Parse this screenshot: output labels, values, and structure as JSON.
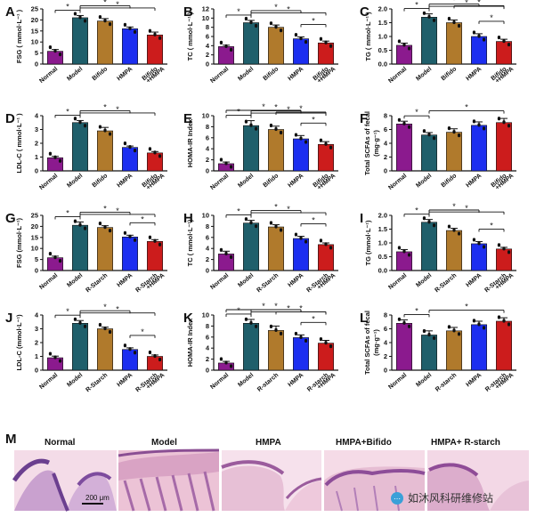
{
  "colors": {
    "Normal": "#8b1a8e",
    "Model": "#1f5f6b",
    "Bifido": "#b07a2c",
    "R-Starch": "#b07a2c",
    "HMPA": "#1c2ef0",
    "Combo": "#cc1c1c"
  },
  "chart_data": [
    {
      "panel": "A",
      "type": "bar",
      "ylabel": "FSG ( mmol·L⁻¹ )",
      "ylim": [
        0,
        25
      ],
      "yticks": [
        0,
        5,
        10,
        15,
        20,
        25
      ],
      "categories": [
        "Normal",
        "Model",
        "Bifido",
        "HMPA",
        "Bifido\n+HMPA"
      ],
      "values": [
        5.8,
        21,
        19.5,
        16,
        13.2
      ],
      "errors": [
        0.8,
        1.0,
        1.1,
        0.8,
        1.3
      ],
      "sig_marks": [
        "*",
        "*",
        "*"
      ]
    },
    {
      "panel": "B",
      "type": "bar",
      "ylabel": "TC ( mmol·L⁻¹ )",
      "ylim": [
        0,
        12
      ],
      "yticks": [
        0,
        2,
        4,
        6,
        8,
        10,
        12
      ],
      "categories": [
        "Normal",
        "Model",
        "Bifido",
        "HMPA",
        "Bifido\n+HMPA"
      ],
      "values": [
        3.8,
        9,
        8,
        5.5,
        4.6
      ],
      "errors": [
        0.3,
        0.5,
        0.5,
        0.4,
        0.4
      ],
      "sig_marks": [
        "*",
        "*",
        "*",
        "*"
      ]
    },
    {
      "panel": "C",
      "type": "bar",
      "ylabel": "TG ( mmol·L⁻¹ )",
      "ylim": [
        0,
        2.0
      ],
      "yticks": [
        0.0,
        0.5,
        1.0,
        1.5,
        2.0
      ],
      "categories": [
        "Normal",
        "Model",
        "Bifido",
        "HMPA",
        "Bifido\n+HMPA"
      ],
      "values": [
        0.68,
        1.7,
        1.5,
        1.0,
        0.82
      ],
      "errors": [
        0.08,
        0.12,
        0.1,
        0.1,
        0.08
      ],
      "sig_marks": [
        "*",
        "*",
        "*",
        "*",
        "*"
      ]
    },
    {
      "panel": "D",
      "type": "bar",
      "ylabel": "LDL-C ( mmol·L⁻¹ )",
      "ylim": [
        0,
        4
      ],
      "yticks": [
        0,
        1,
        2,
        3,
        4
      ],
      "categories": [
        "Normal",
        "Model",
        "Bifido",
        "HMPA",
        "Bifido\n+HMPA"
      ],
      "values": [
        0.95,
        3.5,
        2.9,
        1.7,
        1.3
      ],
      "errors": [
        0.1,
        0.15,
        0.25,
        0.1,
        0.1
      ],
      "sig_marks": [
        "*",
        "*",
        "*"
      ]
    },
    {
      "panel": "E",
      "type": "bar",
      "ylabel": "HOMA-IR Index",
      "ylim": [
        0,
        10
      ],
      "yticks": [
        0,
        2,
        4,
        6,
        8,
        10
      ],
      "categories": [
        "Normal",
        "Model",
        "Bifido",
        "HMPA",
        "Bifido\n+HMPA"
      ],
      "values": [
        1.3,
        8.2,
        7.5,
        5.8,
        4.8
      ],
      "errors": [
        0.3,
        0.9,
        0.6,
        0.6,
        0.5
      ],
      "sig_marks": [
        "*",
        "*",
        "*",
        "*",
        "*",
        "*"
      ]
    },
    {
      "panel": "F",
      "type": "bar",
      "ylabel": "Total SCFAs of fecal",
      "ylabel2": "(mg·g⁻¹)",
      "ylim": [
        0,
        8
      ],
      "yticks": [
        0,
        2,
        4,
        6,
        8
      ],
      "categories": [
        "Normal",
        "Model",
        "Bifido",
        "HMPA",
        "Bifido\n+HMPA"
      ],
      "values": [
        6.8,
        5.2,
        5.6,
        6.6,
        7.0
      ],
      "errors": [
        0.4,
        0.35,
        0.5,
        0.5,
        0.6
      ],
      "sig_marks": [
        "*",
        "*"
      ]
    },
    {
      "panel": "G",
      "type": "bar",
      "ylabel": "FSG (mmol·L⁻¹)",
      "ylim": [
        0,
        25
      ],
      "yticks": [
        0,
        5,
        10,
        15,
        20,
        25
      ],
      "categories": [
        "Normal",
        "Model",
        "R-Starch",
        "HMPA",
        "R-Starch\n+HMPA"
      ],
      "values": [
        5.8,
        20.5,
        19.5,
        15.2,
        13.2
      ],
      "errors": [
        0.7,
        1.5,
        0.8,
        0.8,
        0.8
      ],
      "sig_marks": [
        "*",
        "*",
        "*",
        "*"
      ]
    },
    {
      "panel": "H",
      "type": "bar",
      "ylabel": "TC ( mmol·L⁻¹)",
      "ylim": [
        0,
        10
      ],
      "yticks": [
        0,
        2,
        4,
        6,
        8,
        10
      ],
      "categories": [
        "Normal",
        "Model",
        "R-Starch",
        "HMPA",
        "R-Starch\n+HMPA"
      ],
      "values": [
        3.0,
        8.6,
        7.9,
        5.8,
        4.7
      ],
      "errors": [
        0.5,
        0.5,
        0.4,
        0.4,
        0.3
      ],
      "sig_marks": [
        "*",
        "*",
        "*",
        "*"
      ]
    },
    {
      "panel": "I",
      "type": "bar",
      "ylabel": "TG (mmol·L⁻¹)",
      "ylim": [
        0,
        2.0
      ],
      "yticks": [
        0.0,
        0.5,
        1.0,
        1.5,
        2.0
      ],
      "categories": [
        "Normal",
        "Model",
        "R-Starch",
        "HMPA",
        "R-Starch\n+HMPA"
      ],
      "values": [
        0.68,
        1.75,
        1.45,
        0.97,
        0.78
      ],
      "errors": [
        0.08,
        0.1,
        0.08,
        0.08,
        0.06
      ],
      "sig_marks": [
        "*",
        "*",
        "*",
        "*"
      ]
    },
    {
      "panel": "J",
      "type": "bar",
      "ylabel": "LDL-C (mmol·L⁻¹)",
      "ylim": [
        0,
        4
      ],
      "yticks": [
        0,
        1,
        2,
        3,
        4
      ],
      "categories": [
        "Normal",
        "Model",
        "R-Starch",
        "HMPA",
        "R-Starch\n+HMPA"
      ],
      "values": [
        0.9,
        3.4,
        3.0,
        1.5,
        1.0
      ],
      "errors": [
        0.12,
        0.2,
        0.12,
        0.12,
        0.1
      ],
      "sig_marks": [
        "*",
        "*",
        "*",
        "*"
      ]
    },
    {
      "panel": "K",
      "type": "bar",
      "ylabel": "HOMA-IR Index",
      "ylim": [
        0,
        10
      ],
      "yticks": [
        0,
        2,
        4,
        6,
        8,
        10
      ],
      "categories": [
        "Normal",
        "Model",
        "R-starch",
        "HMPA",
        "R-starch\n+HMPA"
      ],
      "values": [
        1.3,
        8.5,
        7.2,
        5.9,
        4.9
      ],
      "errors": [
        0.3,
        0.7,
        0.8,
        0.5,
        0.5
      ],
      "sig_marks": [
        "*",
        "*",
        "*",
        "*",
        "*",
        "*"
      ]
    },
    {
      "panel": "L",
      "type": "bar",
      "ylabel": "Total SCFAs of fecal",
      "ylabel2": "(mg·g⁻¹)",
      "ylim": [
        0,
        8
      ],
      "yticks": [
        0,
        2,
        4,
        6,
        8
      ],
      "categories": [
        "Normal",
        "Model",
        "R-starch",
        "HMPA",
        "R-starch\n+HMPA"
      ],
      "values": [
        6.8,
        5.1,
        5.7,
        6.6,
        7.1
      ],
      "errors": [
        0.5,
        0.6,
        0.5,
        0.5,
        0.5
      ],
      "sig_marks": [
        "*",
        "*"
      ]
    }
  ],
  "histology": {
    "panel": "M",
    "labels": [
      "Normal",
      "Model",
      "HMPA",
      "HMPA+Bifido",
      "HMPA+ R-starch"
    ],
    "scale_bar": "200 μm",
    "watermark": "如沐风科研维修站"
  }
}
